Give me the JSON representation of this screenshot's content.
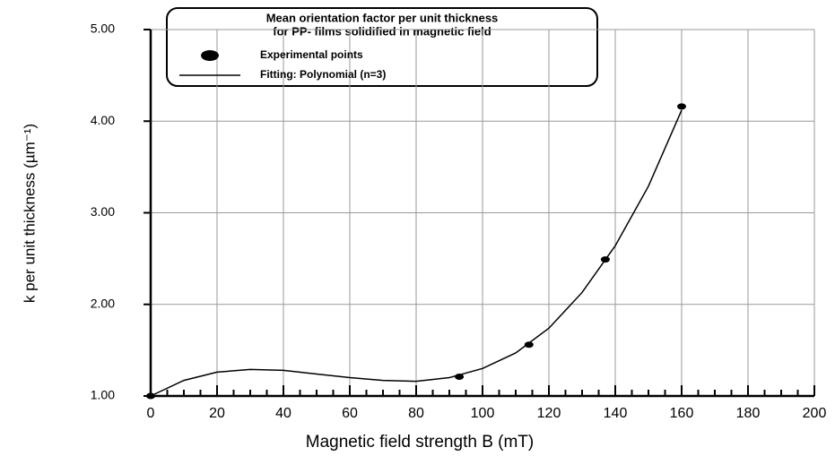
{
  "chart_data": {
    "type": "line",
    "title": [
      "Mean orientation factor per unit thickness",
      "for PP- films solidified in magnetic field"
    ],
    "x_label": "Magnetic field strength B  (mT)",
    "y_label": "k per unit thickness   (µm⁻¹)",
    "xlim": [
      0,
      200
    ],
    "ylim": [
      1,
      5
    ],
    "xticks": [
      0,
      20,
      40,
      60,
      80,
      100,
      120,
      140,
      160,
      180,
      200
    ],
    "xminorticks": [
      5,
      10,
      15,
      25,
      30,
      35,
      45,
      50,
      55,
      65,
      70,
      75,
      85,
      90,
      95,
      105,
      110,
      115,
      125,
      130,
      135,
      145,
      150,
      155,
      165,
      170,
      175,
      185,
      190,
      195
    ],
    "yticks": [
      {
        "value": 1,
        "label": "1.00"
      },
      {
        "value": 2,
        "label": "2.00"
      },
      {
        "value": 3,
        "label": "3.00"
      },
      {
        "value": 4,
        "label": "4.00"
      },
      {
        "value": 5,
        "label": "5.00"
      }
    ],
    "grid": true,
    "legend": "upper left",
    "series": [
      {
        "name": "Experimental points",
        "mode": "markers",
        "color": "#000000",
        "x": [
          0,
          93,
          114,
          137,
          160
        ],
        "values": [
          1.0,
          1.21,
          1.56,
          2.49,
          4.16
        ]
      },
      {
        "name": "Fitting:  Polynomial (n=3)",
        "mode": "line",
        "color": "#000000",
        "x": [
          0,
          10,
          20,
          30,
          40,
          50,
          60,
          70,
          80,
          90,
          100,
          110,
          120,
          130,
          140,
          150,
          160
        ],
        "values": [
          1.0,
          1.17,
          1.26,
          1.29,
          1.28,
          1.24,
          1.2,
          1.17,
          1.16,
          1.2,
          1.3,
          1.47,
          1.74,
          2.13,
          2.64,
          3.29,
          4.12
        ]
      }
    ]
  }
}
